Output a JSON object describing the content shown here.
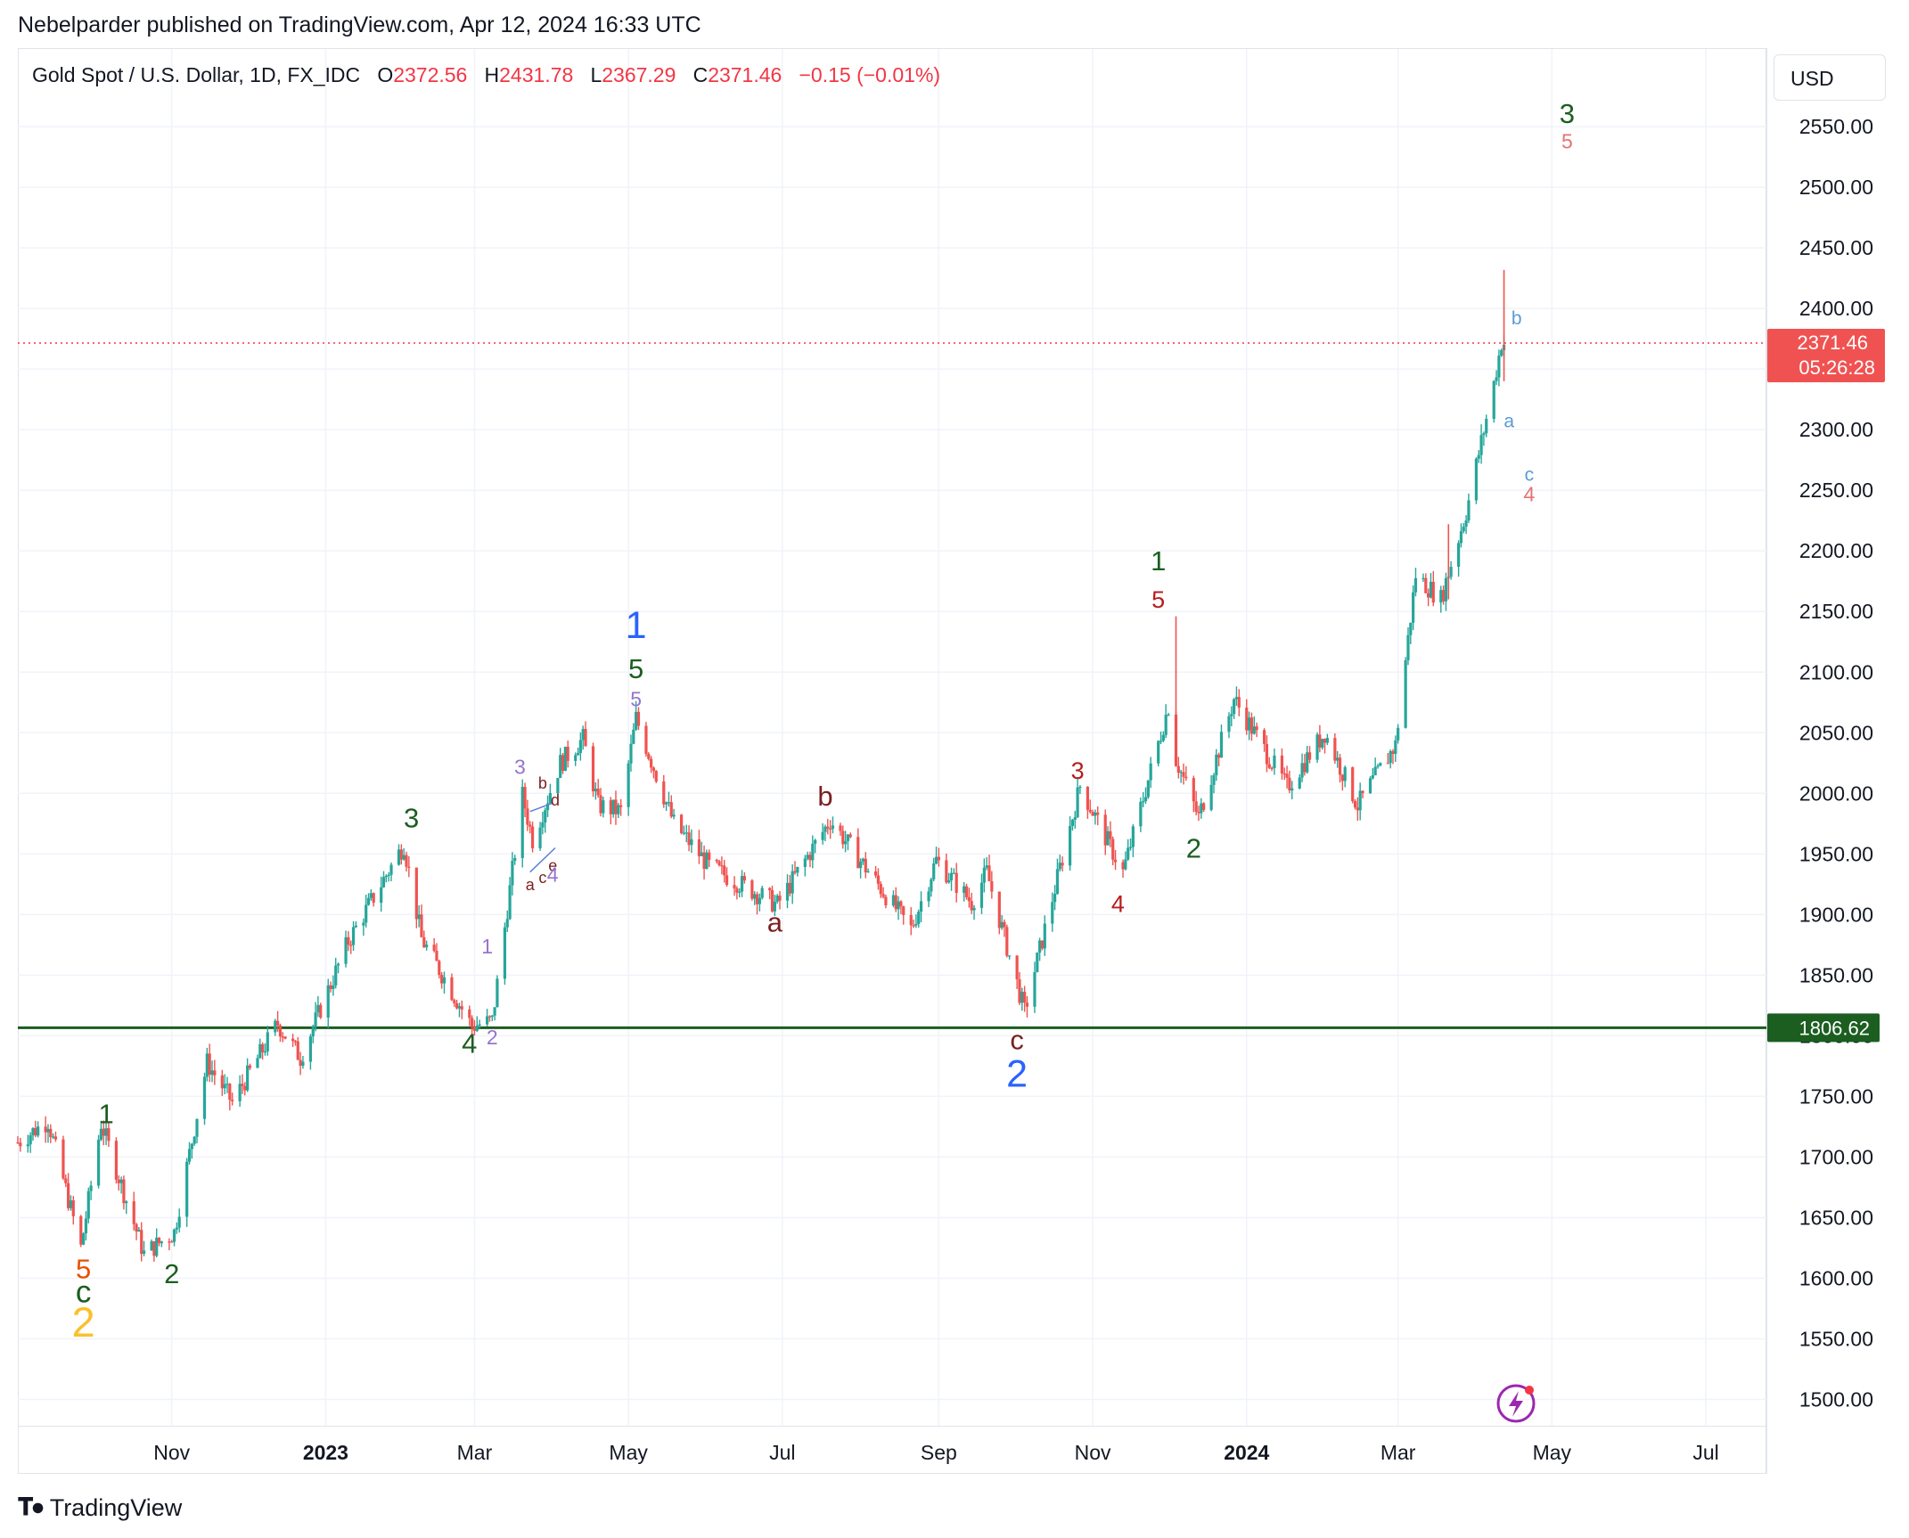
{
  "header": {
    "publisher": "Nebelparder published on TradingView.com, Apr 12, 2024 16:33 UTC"
  },
  "legend": {
    "symbol": "Gold Spot / U.S. Dollar, 1D, FX_IDC",
    "open_label": "O",
    "open": "2372.56",
    "high_label": "H",
    "high": "2431.78",
    "low_label": "L",
    "low": "2367.29",
    "close_label": "C",
    "close": "2371.46",
    "change": "−0.15 (−0.01%)"
  },
  "currency": "USD",
  "price_tag": {
    "price": "2371.46",
    "countdown": "05:26:28"
  },
  "level_tag": "1806.62",
  "footer": {
    "brand": "TradingView"
  },
  "colors": {
    "up": "#26a69a",
    "down": "#ef5350",
    "level": "#1b5e20",
    "price_line": "#f23645",
    "tag": "#f05252"
  },
  "chart_data": {
    "type": "candlestick",
    "ylim": [
      1490,
      2600
    ],
    "y_ticks": [
      1500,
      1550,
      1600,
      1650,
      1700,
      1750,
      1800,
      1850,
      1900,
      1950,
      2000,
      2050,
      2100,
      2150,
      2200,
      2250,
      2300,
      2350,
      2400,
      2450,
      2500,
      2550
    ],
    "y_tick_labels": [
      "1500.00",
      "1550.00",
      "1600.00",
      "1650.00",
      "1700.00",
      "1750.00",
      "1800.00",
      "1850.00",
      "1900.00",
      "1950.00",
      "2000.00",
      "2050.00",
      "2100.00",
      "2150.00",
      "2200.00",
      "2250.00",
      "2300.00",
      "2350.00",
      "2400.00",
      "2450.00",
      "2500.00",
      "2550.00"
    ],
    "x_range": [
      "2022-09-01",
      "2024-07-25"
    ],
    "x_ticks": [
      {
        "label": "Nov",
        "date": "2022-11-01",
        "bold": false
      },
      {
        "label": "2023",
        "date": "2023-01-01",
        "bold": true
      },
      {
        "label": "Mar",
        "date": "2023-03-01",
        "bold": false
      },
      {
        "label": "May",
        "date": "2023-05-01",
        "bold": false
      },
      {
        "label": "Jul",
        "date": "2023-07-01",
        "bold": false
      },
      {
        "label": "Sep",
        "date": "2023-09-01",
        "bold": false
      },
      {
        "label": "Nov",
        "date": "2023-11-01",
        "bold": false
      },
      {
        "label": "2024",
        "date": "2024-01-01",
        "bold": true
      },
      {
        "label": "Mar",
        "date": "2024-03-01",
        "bold": false
      },
      {
        "label": "May",
        "date": "2024-05-01",
        "bold": false
      },
      {
        "label": "Jul",
        "date": "2024-07-01",
        "bold": false
      }
    ],
    "current_price": 2371.46,
    "horizontal_level": 1806.62,
    "price_path": [
      [
        "2022-09-01",
        1712
      ],
      [
        "2022-09-13",
        1730
      ],
      [
        "2022-09-26",
        1625
      ],
      [
        "2022-10-04",
        1728
      ],
      [
        "2022-10-21",
        1620
      ],
      [
        "2022-11-02",
        1638
      ],
      [
        "2022-11-15",
        1778
      ],
      [
        "2022-11-25",
        1745
      ],
      [
        "2022-12-13",
        1810
      ],
      [
        "2022-12-22",
        1782
      ],
      [
        "2023-01-10",
        1878
      ],
      [
        "2023-02-01",
        1958
      ],
      [
        "2023-02-08",
        1880
      ],
      [
        "2023-02-28",
        1808
      ],
      [
        "2023-03-08",
        1812
      ],
      [
        "2023-03-20",
        1998
      ],
      [
        "2023-03-24",
        1962
      ],
      [
        "2023-04-04",
        2025
      ],
      [
        "2023-04-13",
        2045
      ],
      [
        "2023-04-19",
        1990
      ],
      [
        "2023-04-28",
        1985
      ],
      [
        "2023-05-04",
        2062
      ],
      [
        "2023-05-19",
        1975
      ],
      [
        "2023-06-02",
        1940
      ],
      [
        "2023-06-29",
        1908
      ],
      [
        "2023-07-20",
        1978
      ],
      [
        "2023-08-21",
        1888
      ],
      [
        "2023-08-31",
        1945
      ],
      [
        "2023-09-14",
        1910
      ],
      [
        "2023-09-20",
        1935
      ],
      [
        "2023-10-05",
        1820
      ],
      [
        "2023-10-27",
        2006
      ],
      [
        "2023-11-13",
        1935
      ],
      [
        "2023-12-01",
        2072
      ],
      [
        "2023-12-04",
        2028
      ],
      [
        "2023-12-13",
        1980
      ],
      [
        "2023-12-27",
        2078
      ],
      [
        "2024-01-17",
        2005
      ],
      [
        "2024-02-01",
        2050
      ],
      [
        "2024-02-14",
        1990
      ],
      [
        "2024-02-29",
        2040
      ],
      [
        "2024-03-08",
        2180
      ],
      [
        "2024-03-18",
        2160
      ],
      [
        "2024-03-21",
        2182
      ],
      [
        "2024-03-28",
        2232
      ],
      [
        "2024-04-08",
        2338
      ],
      [
        "2024-04-11",
        2372
      ],
      [
        "2024-04-12",
        2371.46
      ]
    ],
    "wave_labels": [
      {
        "text": "1",
        "date": "2022-10-06",
        "price": 1728,
        "color": "#1b5e20",
        "size": 31
      },
      {
        "text": "5",
        "date": "2022-09-27",
        "price": 1600,
        "color": "#e65100",
        "size": 31
      },
      {
        "text": "c",
        "date": "2022-09-27",
        "price": 1580,
        "color": "#1b5e20",
        "size": 35
      },
      {
        "text": "2",
        "date": "2022-09-27",
        "price": 1552,
        "color": "#fbc02d",
        "size": 47
      },
      {
        "text": "2",
        "date": "2022-11-01",
        "price": 1596,
        "color": "#1b5e20",
        "size": 31
      },
      {
        "text": "3",
        "date": "2023-02-04",
        "price": 1972,
        "color": "#1b5e20",
        "size": 31
      },
      {
        "text": "4",
        "date": "2023-02-27",
        "price": 1786,
        "color": "#1b5e20",
        "size": 31
      },
      {
        "text": "1",
        "date": "2023-03-06",
        "price": 1868,
        "color": "#9575cd",
        "size": 23
      },
      {
        "text": "2",
        "date": "2023-03-08",
        "price": 1793,
        "color": "#9575cd",
        "size": 23
      },
      {
        "text": "3",
        "date": "2023-03-19",
        "price": 2016,
        "color": "#9575cd",
        "size": 23
      },
      {
        "text": "b",
        "date": "2023-03-28",
        "price": 2004,
        "color": "#7b1f1f",
        "size": 18
      },
      {
        "text": "d",
        "date": "2023-04-02",
        "price": 1990,
        "color": "#7b1f1f",
        "size": 18
      },
      {
        "text": "a",
        "date": "2023-03-23",
        "price": 1920,
        "color": "#7b1f1f",
        "size": 18
      },
      {
        "text": "c",
        "date": "2023-03-28",
        "price": 1926,
        "color": "#7b1f1f",
        "size": 18
      },
      {
        "text": "e",
        "date": "2023-04-01",
        "price": 1936,
        "color": "#7b1f1f",
        "size": 18
      },
      {
        "text": "4",
        "date": "2023-04-01",
        "price": 1927,
        "color": "#9575cd",
        "size": 23
      },
      {
        "text": "1",
        "date": "2023-05-04",
        "price": 2128,
        "color": "#2962ff",
        "size": 43
      },
      {
        "text": "5",
        "date": "2023-05-04",
        "price": 2095,
        "color": "#1b5e20",
        "size": 31
      },
      {
        "text": "5",
        "date": "2023-05-04",
        "price": 2072,
        "color": "#9575cd",
        "size": 23
      },
      {
        "text": "a",
        "date": "2023-06-28",
        "price": 1886,
        "color": "#7b1f1f",
        "size": 31
      },
      {
        "text": "b",
        "date": "2023-07-18",
        "price": 1990,
        "color": "#7b1f1f",
        "size": 31
      },
      {
        "text": "c",
        "date": "2023-10-02",
        "price": 1789,
        "color": "#7b1f1f",
        "size": 31
      },
      {
        "text": "2",
        "date": "2023-10-02",
        "price": 1758,
        "color": "#2962ff",
        "size": 43
      },
      {
        "text": "3",
        "date": "2023-10-26",
        "price": 2012,
        "color": "#b71c1c",
        "size": 27
      },
      {
        "text": "4",
        "date": "2023-11-11",
        "price": 1902,
        "color": "#b71c1c",
        "size": 27
      },
      {
        "text": "1",
        "date": "2023-11-27",
        "price": 2184,
        "color": "#1b5e20",
        "size": 31
      },
      {
        "text": "5",
        "date": "2023-11-27",
        "price": 2153,
        "color": "#b71c1c",
        "size": 27
      },
      {
        "text": "2",
        "date": "2023-12-11",
        "price": 1947,
        "color": "#1b5e20",
        "size": 31
      },
      {
        "text": "b",
        "date": "2024-04-17",
        "price": 2387,
        "color": "#5b9bd5",
        "size": 21
      },
      {
        "text": "a",
        "date": "2024-04-14",
        "price": 2302,
        "color": "#5b9bd5",
        "size": 21
      },
      {
        "text": "c",
        "date": "2024-04-22",
        "price": 2258,
        "color": "#5b9bd5",
        "size": 21
      },
      {
        "text": "4",
        "date": "2024-04-22",
        "price": 2241,
        "color": "#e57373",
        "size": 23
      },
      {
        "text": "3",
        "date": "2024-05-07",
        "price": 2553,
        "color": "#1b5e20",
        "size": 31
      },
      {
        "text": "5",
        "date": "2024-05-07",
        "price": 2532,
        "color": "#e57373",
        "size": 23
      }
    ],
    "triangle_lines": [
      [
        [
          "2023-03-23",
          1935
        ],
        [
          "2023-04-02",
          1955
        ]
      ],
      [
        [
          "2023-03-23",
          1985
        ],
        [
          "2023-04-01",
          1992
        ]
      ]
    ]
  }
}
